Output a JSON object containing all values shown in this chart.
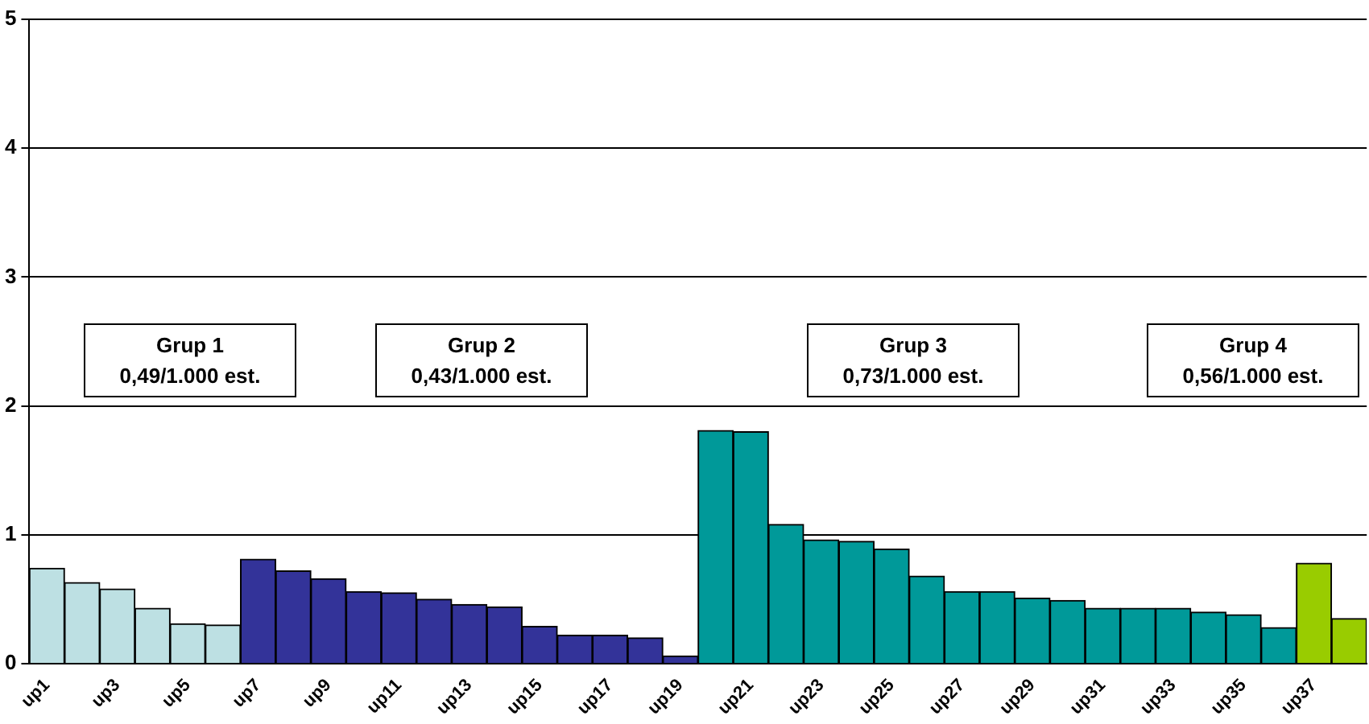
{
  "chart_data": {
    "type": "bar",
    "categories": [
      "up1",
      null,
      "up3",
      null,
      "up5",
      null,
      "up7",
      null,
      "up9",
      null,
      "up11",
      null,
      "up13",
      null,
      "up15",
      null,
      "up17",
      null,
      "up19",
      null,
      "up21",
      null,
      "up23",
      null,
      "up25",
      null,
      "up27",
      null,
      "up29",
      null,
      "up31",
      null,
      "up33",
      null,
      "up35",
      null,
      "up37",
      null
    ],
    "values": [
      0.74,
      0.63,
      0.58,
      0.43,
      0.31,
      0.3,
      0.81,
      0.72,
      0.66,
      0.56,
      0.55,
      0.5,
      0.46,
      0.44,
      0.29,
      0.22,
      0.22,
      0.2,
      0.06,
      1.81,
      1.8,
      1.08,
      0.96,
      0.95,
      0.89,
      0.68,
      0.56,
      0.56,
      0.51,
      0.49,
      0.43,
      0.43,
      0.43,
      0.4,
      0.38,
      0.28,
      0.78,
      0.35
    ],
    "colors": [
      "#bde0e3",
      "#bde0e3",
      "#bde0e3",
      "#bde0e3",
      "#bde0e3",
      "#bde0e3",
      "#333399",
      "#333399",
      "#333399",
      "#333399",
      "#333399",
      "#333399",
      "#333399",
      "#333399",
      "#333399",
      "#333399",
      "#333399",
      "#333399",
      "#333399",
      "#009999",
      "#009999",
      "#009999",
      "#009999",
      "#009999",
      "#009999",
      "#009999",
      "#009999",
      "#009999",
      "#009999",
      "#009999",
      "#009999",
      "#009999",
      "#009999",
      "#009999",
      "#009999",
      "#009999",
      "#99cc00",
      "#99cc00"
    ],
    "ylim": [
      0,
      5
    ],
    "yticks": [
      0,
      1,
      2,
      3,
      4,
      5
    ],
    "grid": "y",
    "legend": false,
    "annotations": [
      "Grup 1\n0,49/1.000 est.",
      "Grup 2\n0,43/1.000 est.",
      "Grup 3\n0,73/1.000 est.",
      "Grup 4\n0,56/1.000 est."
    ]
  }
}
